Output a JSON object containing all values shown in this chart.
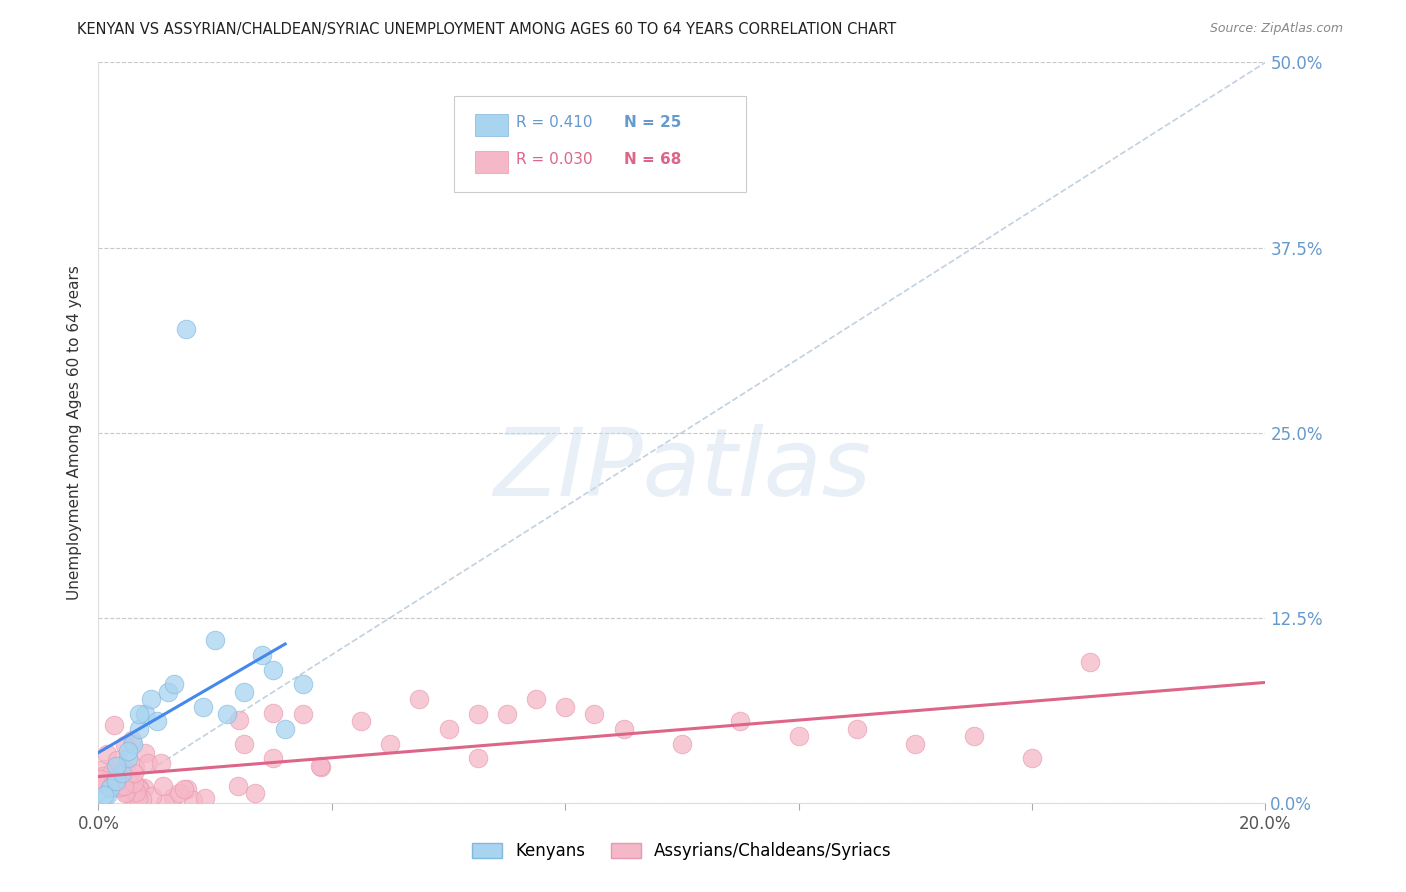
{
  "title": "KENYAN VS ASSYRIAN/CHALDEAN/SYRIAC UNEMPLOYMENT AMONG AGES 60 TO 64 YEARS CORRELATION CHART",
  "source": "Source: ZipAtlas.com",
  "ylabel": "Unemployment Among Ages 60 to 64 years",
  "ytick_labels": [
    "0.0%",
    "12.5%",
    "25.0%",
    "37.5%",
    "50.0%"
  ],
  "ytick_values": [
    0.0,
    0.125,
    0.25,
    0.375,
    0.5
  ],
  "xlim": [
    0.0,
    0.2
  ],
  "ylim": [
    0.0,
    0.5
  ],
  "background_color": "#ffffff",
  "grid_color": "#c8c8c8",
  "watermark_text": "ZIPatlas",
  "kenyan_R": 0.41,
  "kenyan_N": 25,
  "assyrian_R": 0.03,
  "assyrian_N": 68,
  "kenyan_color": "#a8d4f0",
  "kenyan_edge": "#80b8e0",
  "assyrian_color": "#f5b8c8",
  "assyrian_edge": "#e898b0",
  "kenyan_line_color": "#4488ee",
  "assyrian_line_color": "#dd6688",
  "ref_line_color": "#bbccdd",
  "legend_kenyan_color": "#6699cc",
  "legend_assyrian_color": "#dd6688",
  "title_color": "#222222",
  "source_color": "#888888",
  "ylabel_color": "#333333",
  "tick_color": "#6699cc",
  "xtick_color": "#555555"
}
